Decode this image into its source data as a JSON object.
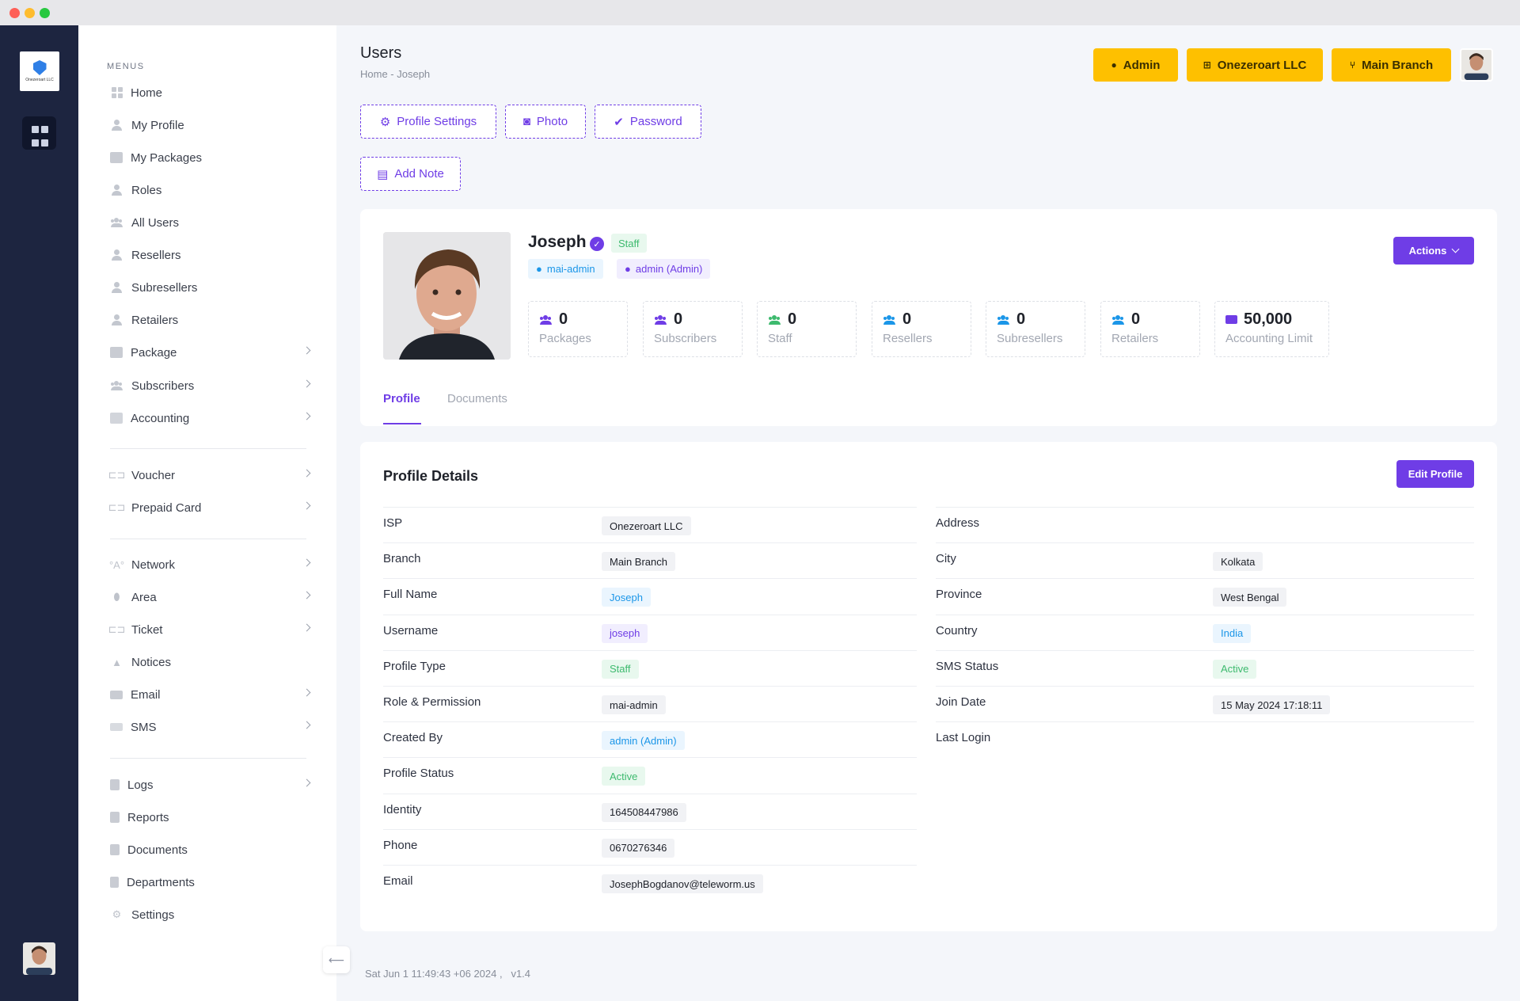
{
  "app": {
    "logo_text": "Onezeroart LLC"
  },
  "sidebar": {
    "menus_title": "MENUS",
    "items": [
      {
        "label": "Home",
        "icon": "grid-icon"
      },
      {
        "label": "My Profile",
        "icon": "user-icon"
      },
      {
        "label": "My Packages",
        "icon": "package-icon"
      },
      {
        "label": "Roles",
        "icon": "user-icon"
      },
      {
        "label": "All Users",
        "icon": "users-icon"
      },
      {
        "label": "Resellers",
        "icon": "user-icon"
      },
      {
        "label": "Subresellers",
        "icon": "user-icon"
      },
      {
        "label": "Retailers",
        "icon": "user-icon"
      },
      {
        "label": "Package",
        "icon": "package-icon"
      },
      {
        "label": "Subscribers",
        "icon": "users-icon"
      },
      {
        "label": "Accounting",
        "icon": "calculator-icon"
      },
      {
        "label": "Voucher",
        "icon": "ticket-icon"
      },
      {
        "label": "Prepaid Card",
        "icon": "ticket-icon"
      },
      {
        "label": "Network",
        "icon": "antenna-icon"
      },
      {
        "label": "Area",
        "icon": "map-pin-icon"
      },
      {
        "label": "Ticket",
        "icon": "ticket-icon"
      },
      {
        "label": "Notices",
        "icon": "bell-icon"
      },
      {
        "label": "Email",
        "icon": "envelope-icon"
      },
      {
        "label": "SMS",
        "icon": "message-icon"
      },
      {
        "label": "Logs",
        "icon": "book-icon"
      },
      {
        "label": "Reports",
        "icon": "book-icon"
      },
      {
        "label": "Documents",
        "icon": "book-icon"
      },
      {
        "label": "Departments",
        "icon": "building-icon"
      },
      {
        "label": "Settings",
        "icon": "gears-icon"
      }
    ]
  },
  "header": {
    "title": "Users",
    "breadcrumb": "Home  -  Joseph",
    "admin_label": "Admin",
    "company_label": "Onezeroart LLC",
    "branch_label": "Main Branch",
    "brand_color": "#6f3de6",
    "warning_color": "#fec000"
  },
  "toolbar": {
    "profile_settings": "Profile Settings",
    "photo": "Photo",
    "password": "Password",
    "add_note": "Add Note"
  },
  "profile": {
    "name": "Joseph",
    "type_badge": "Staff",
    "username_chip": "mai-admin",
    "creator_chip": "admin (Admin)",
    "actions_label": "Actions",
    "stats": [
      {
        "value": "0",
        "label": "Packages"
      },
      {
        "value": "0",
        "label": "Subscribers"
      },
      {
        "value": "0",
        "label": "Staff"
      },
      {
        "value": "0",
        "label": "Resellers"
      },
      {
        "value": "0",
        "label": "Subresellers"
      },
      {
        "value": "0",
        "label": "Retailers"
      },
      {
        "value": "50,000",
        "label": "Accounting Limit"
      }
    ],
    "tabs": [
      "Profile",
      "Documents"
    ]
  },
  "details": {
    "title": "Profile Details",
    "edit_label": "Edit Profile",
    "left": [
      {
        "label": "ISP",
        "value": "Onezeroart LLC",
        "style": "gray"
      },
      {
        "label": "Branch",
        "value": "Main Branch",
        "style": "gray"
      },
      {
        "label": "Full Name",
        "value": "Joseph",
        "style": "blue"
      },
      {
        "label": "Username",
        "value": "joseph",
        "style": "purple"
      },
      {
        "label": "Profile Type",
        "value": "Staff",
        "style": "green"
      },
      {
        "label": "Role & Permission",
        "value": "mai-admin",
        "style": "gray"
      },
      {
        "label": "Created By",
        "value": "admin (Admin)",
        "style": "blue"
      },
      {
        "label": "Profile Status",
        "value": "Active",
        "style": "green"
      },
      {
        "label": "Identity",
        "value": "164508447986",
        "style": "gray"
      },
      {
        "label": "Phone",
        "value": "0670276346",
        "style": "gray"
      },
      {
        "label": "Email",
        "value": "JosephBogdanov@teleworm.us",
        "style": "gray"
      }
    ],
    "right": [
      {
        "label": "Address",
        "value": "",
        "style": "gray"
      },
      {
        "label": "City",
        "value": "Kolkata",
        "style": "gray"
      },
      {
        "label": "Province",
        "value": "West Bengal",
        "style": "gray"
      },
      {
        "label": "Country",
        "value": "India",
        "style": "blue"
      },
      {
        "label": "SMS Status",
        "value": "Active",
        "style": "green"
      },
      {
        "label": "Join Date",
        "value": "15 May 2024 17:18:11",
        "style": "gray"
      },
      {
        "label": "Last Login",
        "value": "",
        "style": "gray"
      }
    ]
  },
  "footer": {
    "timestamp": "Sat Jun 1 11:49:43 +06 2024 ,",
    "version": "v1.4"
  }
}
